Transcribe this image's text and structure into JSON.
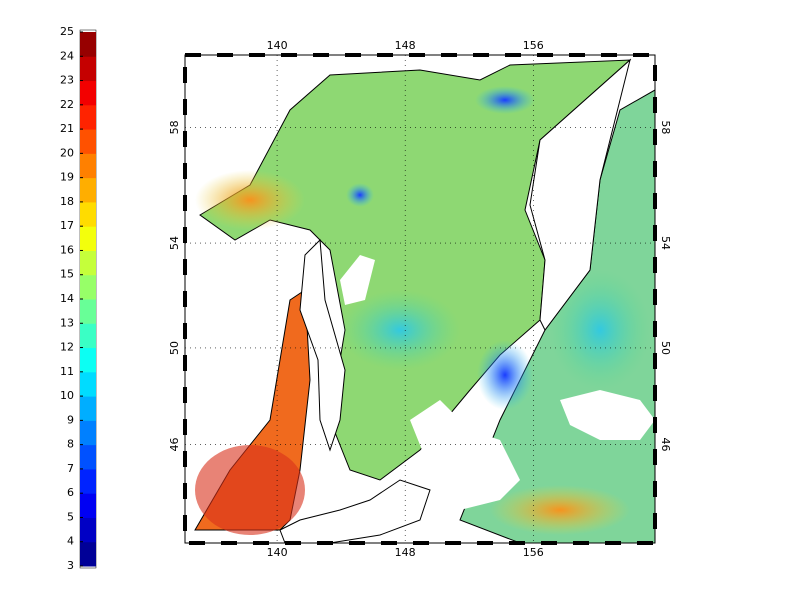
{
  "colorbar": {
    "ticks": [
      3,
      4,
      5,
      6,
      7,
      8,
      9,
      10,
      11,
      12,
      13,
      14,
      15,
      16,
      17,
      18,
      19,
      20,
      21,
      22,
      23,
      24,
      25
    ]
  },
  "map": {
    "xlim": [
      134.25,
      163.6
    ],
    "ylim": [
      41.6,
      60.3
    ],
    "xticks": [
      140,
      148,
      156
    ],
    "yticks": [
      58,
      54,
      50,
      46
    ]
  }
}
